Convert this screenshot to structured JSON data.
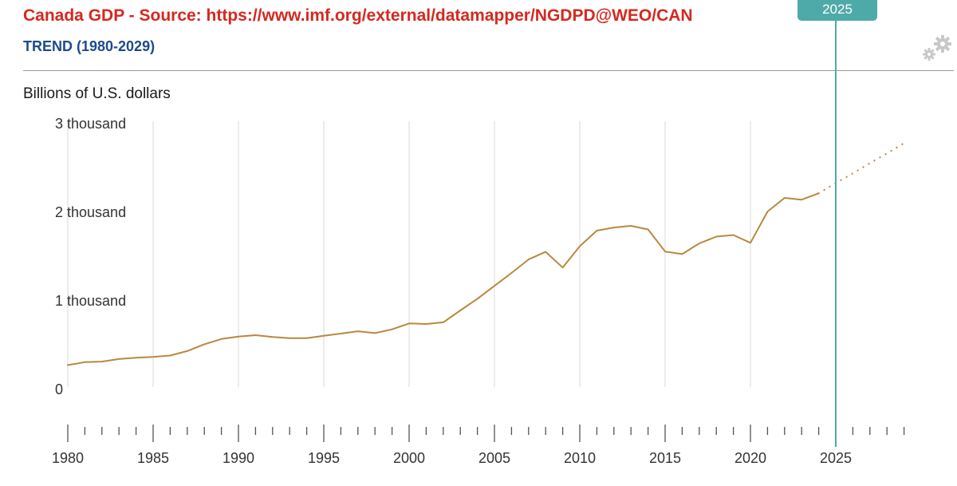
{
  "header": {
    "title": "Canada GDP - Source: https://www.imf.org/external/datamapper/NGDPD@WEO/CAN",
    "subtitle": "TREND (1980-2029)"
  },
  "settings_icon": "gear-icon",
  "marker": {
    "label": "2025",
    "year": 2025,
    "color": "#4eaaa8"
  },
  "chart_data": {
    "type": "line",
    "ylabel": "Billions of U.S. dollars",
    "ylim": [
      0,
      3000
    ],
    "xlim": [
      1980,
      2029
    ],
    "y_ticks": [
      0,
      1000,
      2000,
      3000
    ],
    "y_tick_labels": [
      "0",
      "1 thousand",
      "2 thousand",
      "3 thousand"
    ],
    "x_ticks": [
      1980,
      1985,
      1990,
      1995,
      2000,
      2005,
      2010,
      2015,
      2020,
      2025
    ],
    "x_tick_labels": [
      "1980",
      "1985",
      "1990",
      "1995",
      "2000",
      "2005",
      "2010",
      "2015",
      "2020",
      "2025"
    ],
    "grid": "vertical",
    "line_color": "#b8893e",
    "series": [
      {
        "style": "solid",
        "x": [
          1980,
          1981,
          1982,
          1983,
          1984,
          1985,
          1986,
          1987,
          1988,
          1989,
          1990,
          1991,
          1992,
          1993,
          1994,
          1995,
          1996,
          1997,
          1998,
          1999,
          2000,
          2001,
          2002,
          2003,
          2004,
          2005,
          2006,
          2007,
          2008,
          2009,
          2010,
          2011,
          2012,
          2013,
          2014,
          2015,
          2016,
          2017,
          2018,
          2019,
          2020,
          2021,
          2022,
          2023,
          2024
        ],
        "values": [
          275,
          308,
          314,
          343,
          358,
          368,
          383,
          433,
          510,
          569,
          597,
          613,
          593,
          578,
          578,
          605,
          631,
          657,
          636,
          678,
          745,
          739,
          758,
          892,
          1023,
          1169,
          1315,
          1468,
          1553,
          1376,
          1617,
          1793,
          1828,
          1847,
          1806,
          1557,
          1528,
          1649,
          1725,
          1743,
          1655,
          2008,
          2162,
          2142,
          2214
        ]
      },
      {
        "style": "dotted",
        "x": [
          2024,
          2025,
          2026,
          2027,
          2028,
          2029
        ],
        "values": [
          2214,
          2330,
          2440,
          2555,
          2665,
          2780
        ]
      }
    ]
  }
}
